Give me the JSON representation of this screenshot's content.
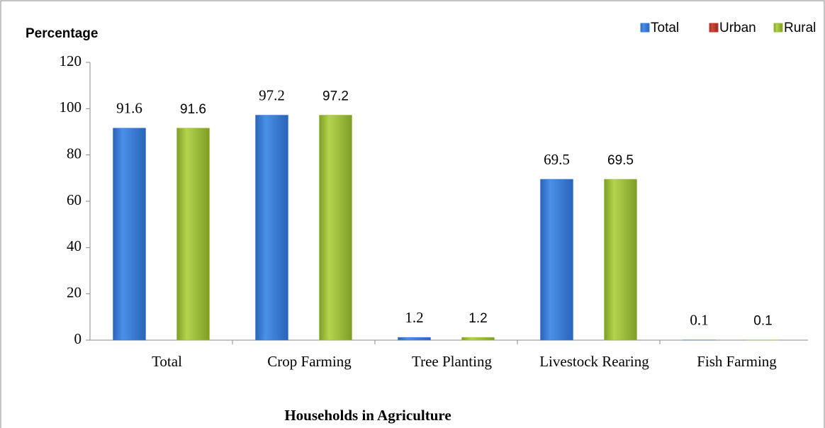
{
  "chart_data": {
    "type": "bar",
    "y_axis_label": "Percentage",
    "x_axis_label": "Households in Agriculture",
    "categories": [
      "Total",
      "Crop Farming",
      "Tree Planting",
      "Livestock Rearing",
      "Fish Farming"
    ],
    "series": [
      {
        "name": "Total",
        "color": "#3a7dd6",
        "values": [
          91.6,
          97.2,
          1.2,
          69.5,
          0.1
        ]
      },
      {
        "name": "Urban",
        "color": "#c0392b",
        "values": [
          null,
          null,
          null,
          null,
          null
        ]
      },
      {
        "name": "Rural",
        "color": "#9bbd3a",
        "values": [
          91.6,
          97.2,
          1.2,
          69.5,
          0.1
        ]
      }
    ],
    "ylim": [
      0,
      120
    ],
    "yticks": [
      0,
      20,
      40,
      60,
      80,
      100,
      120
    ],
    "legend": "top-right"
  }
}
